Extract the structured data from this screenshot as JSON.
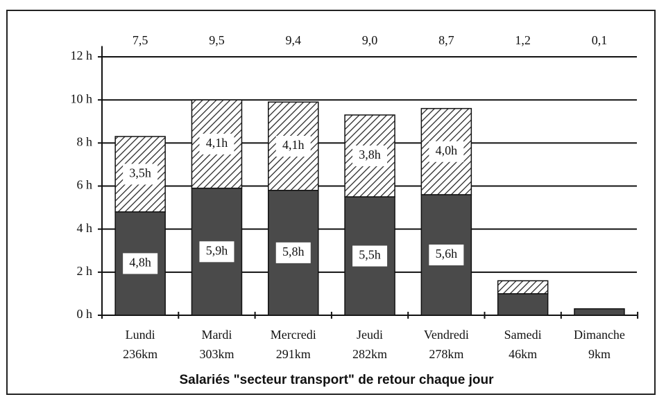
{
  "chart_data": {
    "type": "stacked_bar",
    "title": "Salariés \"secteur transport\" de retour chaque  jour",
    "categories": [
      "Lundi",
      "Mardi",
      "Mercredi",
      "Jeudi",
      "Vendredi",
      "Samedi",
      "Dimanche"
    ],
    "category_sublabels": [
      "236km",
      "303km",
      "291km",
      "282km",
      "278km",
      "46km",
      "9km"
    ],
    "top_labels": [
      "7,5",
      "9,5",
      "9,4",
      "9,0",
      "8,7",
      "1,2",
      "0,1"
    ],
    "series": [
      {
        "color": "#4a4a4a",
        "values": [
          4.8,
          5.9,
          5.8,
          5.5,
          5.6,
          1.0,
          0.3
        ],
        "value_labels": [
          "4,8h",
          "5,9h",
          "5,8h",
          "5,5h",
          "5,6h",
          null,
          null
        ]
      },
      {
        "color": "#ffffff",
        "pattern": "hatch",
        "values": [
          3.5,
          4.1,
          4.1,
          3.8,
          4.0,
          0.6,
          0
        ],
        "value_labels": [
          "3,5h",
          "4,1h",
          "4,1h",
          "3,8h",
          "4,0h",
          null,
          null
        ]
      }
    ],
    "ylim": [
      0,
      12.5
    ],
    "yticks": [
      {
        "value": 0,
        "label": "0 h"
      },
      {
        "value": 2,
        "label": "2 h"
      },
      {
        "value": 4,
        "label": "4 h"
      },
      {
        "value": 6,
        "label": "6 h"
      },
      {
        "value": 8,
        "label": "8 h"
      },
      {
        "value": 10,
        "label": "10 h"
      },
      {
        "value": 12,
        "label": "12 h"
      }
    ],
    "grid": true
  }
}
